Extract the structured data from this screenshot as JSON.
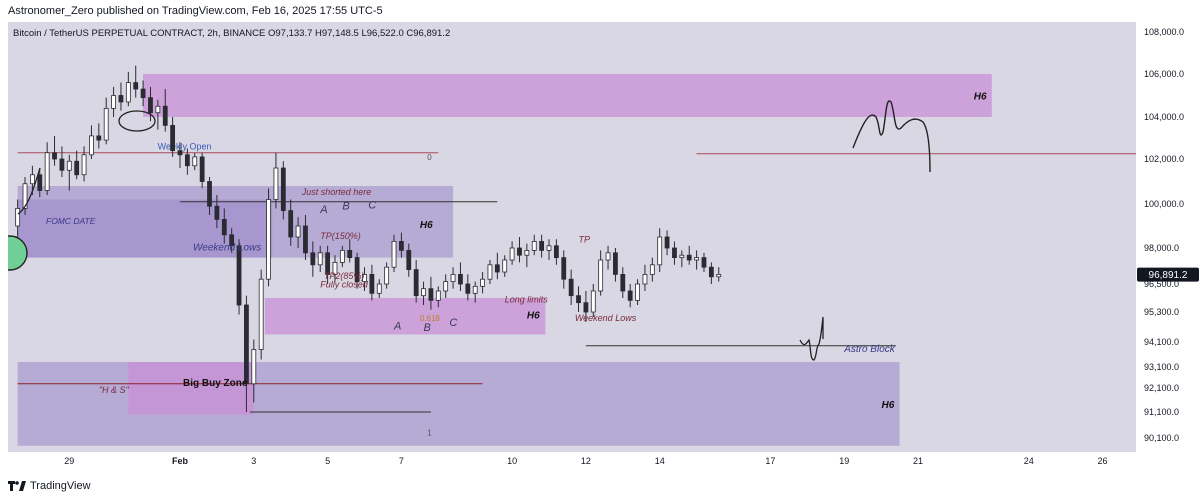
{
  "publication": "Astronomer_Zero published on TradingView.com, Feb 16, 2025 17:55 UTC-5",
  "watermark": "TradingView",
  "colors": {
    "background": "#d8d7e3",
    "candle": "#2b2b33",
    "zone": "#9a87c8",
    "zone_strong": "#c98fd6",
    "weekly_line": "#a94a5a",
    "price_label": "#131722"
  },
  "chart_data": {
    "type": "candlestick",
    "symbol_line": "Bitcoin / TetherUS PERPETUAL CONTRACT, 2h, BINANCE  O97,133.7  H97,148.5  L96,522.0  C96,891.2",
    "last_price": "96,891.2",
    "y_axis": {
      "ticks": [
        {
          "label": "108,000.0",
          "value": 108000
        },
        {
          "label": "106,000.0",
          "value": 106000
        },
        {
          "label": "104,000.0",
          "value": 104000
        },
        {
          "label": "102,000.0",
          "value": 102000
        },
        {
          "label": "100,000.0",
          "value": 100000
        },
        {
          "label": "98,000.0",
          "value": 98000
        },
        {
          "label": "96,500.0",
          "value": 96500
        },
        {
          "label": "95,300.0",
          "value": 95300
        },
        {
          "label": "94,100.0",
          "value": 94100
        },
        {
          "label": "93,100.0",
          "value": 93100
        },
        {
          "label": "92,100.0",
          "value": 92100
        },
        {
          "label": "91,100.0",
          "value": 91100
        },
        {
          "label": "90,100.0",
          "value": 90100
        }
      ]
    },
    "x_axis": {
      "ticks": [
        {
          "label": "29",
          "day": -3
        },
        {
          "label": "Feb",
          "day": 0
        },
        {
          "label": "3",
          "day": 2
        },
        {
          "label": "5",
          "day": 4
        },
        {
          "label": "7",
          "day": 6
        },
        {
          "label": "10",
          "day": 9
        },
        {
          "label": "12",
          "day": 11
        },
        {
          "label": "14",
          "day": 13
        },
        {
          "label": "17",
          "day": 16
        },
        {
          "label": "19",
          "day": 18
        },
        {
          "label": "21",
          "day": 20
        },
        {
          "label": "24",
          "day": 23
        },
        {
          "label": "26",
          "day": 25
        }
      ]
    },
    "zones": [
      {
        "label": "H6",
        "d0": -1,
        "d1": 22,
        "p0": 104000,
        "p1": 106000,
        "style": "strong"
      },
      {
        "label": "FOMC DATE",
        "d0": -4.4,
        "d1": 2.5,
        "p0": 97600,
        "p1": 100200,
        "style": "normal"
      },
      {
        "label": "Weekend Lows",
        "d0": -4.4,
        "d1": 7.4,
        "p0": 97600,
        "p1": 100800,
        "style": "normal"
      },
      {
        "label": "",
        "d0": 2.3,
        "d1": 9.9,
        "p0": 94400,
        "p1": 95900,
        "style": "strong"
      },
      {
        "label": "H6",
        "d0": -4.4,
        "d1": 19.5,
        "p0": 89800,
        "p1": 93300,
        "style": "normal"
      },
      {
        "label": "Big Buy Zone",
        "d0": -1.4,
        "d1": 2,
        "p0": 91000,
        "p1": 93300,
        "style": "strong"
      }
    ],
    "levels": [
      {
        "label": "Weekly Open",
        "price": 102300,
        "d0": -4.4,
        "d1": 7
      },
      {
        "label": "",
        "price": 102250,
        "d0": 14,
        "d1": 27.5
      },
      {
        "label": "",
        "price": 92300,
        "d0": -4.4,
        "d1": 8.2
      },
      {
        "label": "",
        "price": 100100,
        "d0": 0,
        "d1": 8.6
      },
      {
        "label": "",
        "price": 93950,
        "d0": 11,
        "d1": 19.4
      },
      {
        "label": "",
        "price": 91100,
        "d0": 1.9,
        "d1": 6.8
      }
    ],
    "annotations": [
      {
        "text": "Just shorted here",
        "day": 3.3,
        "price": 100400
      },
      {
        "text": "H6",
        "day": 6.5,
        "price": 98900
      },
      {
        "text": "TP(150%)",
        "day": 3.8,
        "price": 98400
      },
      {
        "text": "TP2(85%)",
        "day": 3.9,
        "price": 96700
      },
      {
        "text": "Fully closed",
        "day": 3.8,
        "price": 96350
      },
      {
        "text": "TP",
        "day": 10.8,
        "price": 98250
      },
      {
        "text": "Long limits",
        "day": 8.8,
        "price": 95700
      },
      {
        "text": "H6",
        "day": 9.4,
        "price": 95050
      },
      {
        "text": "Weekend Lows",
        "day": 10.7,
        "price": 94950
      },
      {
        "text": "Astro Block",
        "day": 18.0,
        "price": 93700
      },
      {
        "text": "\"H & S\"",
        "day": -2.2,
        "price": 91900
      },
      {
        "text": "A",
        "day": 3.8,
        "price": 99600
      },
      {
        "text": "B",
        "day": 4.4,
        "price": 99750
      },
      {
        "text": "C",
        "day": 5.1,
        "price": 99800
      },
      {
        "text": "A",
        "day": 5.8,
        "price": 94600
      },
      {
        "text": "B",
        "day": 6.6,
        "price": 94550
      },
      {
        "text": "C",
        "day": 7.3,
        "price": 94750
      },
      {
        "text": "0",
        "day": 6.7,
        "price": 101950
      },
      {
        "text": "1",
        "day": 6.7,
        "price": 90200
      },
      {
        "text": "0.618",
        "day": 6.5,
        "price": 94950
      }
    ],
    "candles": [
      [
        -4.4,
        99000,
        100200,
        98200,
        99800
      ],
      [
        -4.2,
        99800,
        101200,
        99500,
        100900
      ],
      [
        -4.0,
        100900,
        101700,
        100400,
        101300
      ],
      [
        -3.8,
        101300,
        101600,
        100300,
        100600
      ],
      [
        -3.6,
        100600,
        102800,
        100400,
        102300
      ],
      [
        -3.4,
        102300,
        103100,
        101700,
        102000
      ],
      [
        -3.2,
        102000,
        102600,
        101200,
        101500
      ],
      [
        -3.0,
        101500,
        102200,
        100600,
        101900
      ],
      [
        -2.8,
        101900,
        102400,
        101100,
        101300
      ],
      [
        -2.6,
        101300,
        102600,
        101000,
        102200
      ],
      [
        -2.4,
        102200,
        103600,
        102000,
        103100
      ],
      [
        -2.2,
        103100,
        103700,
        102500,
        102900
      ],
      [
        -2.0,
        102900,
        104900,
        102700,
        104400
      ],
      [
        -1.8,
        104400,
        105400,
        104000,
        105000
      ],
      [
        -1.6,
        105000,
        105600,
        104300,
        104700
      ],
      [
        -1.4,
        104700,
        106100,
        104500,
        105600
      ],
      [
        -1.2,
        105600,
        106400,
        104900,
        105300
      ],
      [
        -1.0,
        105300,
        105700,
        104500,
        104900
      ],
      [
        -0.8,
        104900,
        105400,
        103800,
        104200
      ],
      [
        -0.6,
        104200,
        104800,
        103400,
        104500
      ],
      [
        -0.4,
        104500,
        105300,
        103300,
        103600
      ],
      [
        -0.2,
        103600,
        104000,
        102100,
        102400
      ],
      [
        0.0,
        102400,
        102800,
        101600,
        102200
      ],
      [
        0.2,
        102200,
        102500,
        101300,
        101700
      ],
      [
        0.4,
        101700,
        102300,
        101500,
        102100
      ],
      [
        0.6,
        102100,
        102300,
        100700,
        101000
      ],
      [
        0.8,
        101000,
        101200,
        99500,
        99900
      ],
      [
        1.0,
        99900,
        100400,
        98900,
        99300
      ],
      [
        1.2,
        99300,
        99800,
        98200,
        98600
      ],
      [
        1.4,
        98600,
        98900,
        97800,
        98100
      ],
      [
        1.6,
        98100,
        98400,
        95200,
        95600
      ],
      [
        1.8,
        95600,
        96000,
        91100,
        92300
      ],
      [
        2.0,
        92300,
        94200,
        91500,
        93800
      ],
      [
        2.2,
        93800,
        97100,
        93400,
        96700
      ],
      [
        2.4,
        96700,
        100700,
        96400,
        100200
      ],
      [
        2.6,
        100200,
        102300,
        99800,
        101600
      ],
      [
        2.8,
        101600,
        101900,
        99300,
        99700
      ],
      [
        3.0,
        99700,
        100200,
        98100,
        98500
      ],
      [
        3.2,
        98500,
        99400,
        98000,
        99000
      ],
      [
        3.4,
        99000,
        99500,
        97500,
        97800
      ],
      [
        3.6,
        97800,
        98300,
        96800,
        97300
      ],
      [
        3.8,
        97300,
        98100,
        97000,
        97800
      ],
      [
        4.0,
        97800,
        98100,
        96500,
        96900
      ],
      [
        4.2,
        96900,
        97700,
        96600,
        97400
      ],
      [
        4.4,
        97400,
        98100,
        97200,
        97900
      ],
      [
        4.6,
        97900,
        98400,
        97400,
        97600
      ],
      [
        4.8,
        97600,
        97800,
        96300,
        96600
      ],
      [
        5.0,
        96600,
        97200,
        96200,
        96900
      ],
      [
        5.2,
        96900,
        97300,
        95800,
        96100
      ],
      [
        5.4,
        96100,
        96700,
        95900,
        96500
      ],
      [
        5.6,
        96500,
        97400,
        96300,
        97200
      ],
      [
        5.8,
        97200,
        98600,
        97000,
        98300
      ],
      [
        6.0,
        98300,
        98700,
        97600,
        97900
      ],
      [
        6.2,
        97900,
        98200,
        96800,
        97100
      ],
      [
        6.4,
        97100,
        97500,
        95700,
        96000
      ],
      [
        6.6,
        96000,
        96600,
        95600,
        96300
      ],
      [
        6.8,
        96300,
        96800,
        95400,
        95800
      ],
      [
        7.0,
        95800,
        96400,
        95500,
        96200
      ],
      [
        7.2,
        96200,
        96900,
        95900,
        96600
      ],
      [
        7.4,
        96600,
        97200,
        96300,
        96900
      ],
      [
        7.6,
        96900,
        97400,
        96200,
        96500
      ],
      [
        7.8,
        96500,
        96900,
        95800,
        96100
      ],
      [
        8.0,
        96100,
        96600,
        95700,
        96400
      ],
      [
        8.2,
        96400,
        97000,
        96100,
        96700
      ],
      [
        8.4,
        96700,
        97500,
        96500,
        97300
      ],
      [
        8.6,
        97300,
        97800,
        96700,
        97000
      ],
      [
        8.8,
        97000,
        97700,
        96800,
        97500
      ],
      [
        9.0,
        97500,
        98300,
        97300,
        98000
      ],
      [
        9.2,
        98000,
        98500,
        97400,
        97700
      ],
      [
        9.4,
        97700,
        98200,
        97200,
        97900
      ],
      [
        9.6,
        97900,
        98600,
        97700,
        98300
      ],
      [
        9.8,
        98300,
        98600,
        97600,
        97900
      ],
      [
        10.0,
        97900,
        98400,
        97500,
        98100
      ],
      [
        10.2,
        98100,
        98400,
        97300,
        97600
      ],
      [
        10.4,
        97600,
        97900,
        96300,
        96700
      ],
      [
        10.6,
        96700,
        97100,
        95600,
        96000
      ],
      [
        10.8,
        96000,
        96400,
        95300,
        95700
      ],
      [
        11.0,
        95700,
        96200,
        94900,
        95300
      ],
      [
        11.2,
        95300,
        96500,
        95100,
        96200
      ],
      [
        11.4,
        96200,
        97900,
        96000,
        97500
      ],
      [
        11.6,
        97500,
        98100,
        97100,
        97800
      ],
      [
        11.8,
        97800,
        98000,
        96600,
        96900
      ],
      [
        12.0,
        96900,
        97200,
        95900,
        96200
      ],
      [
        12.2,
        96200,
        96500,
        95500,
        95800
      ],
      [
        12.4,
        95800,
        96700,
        95600,
        96500
      ],
      [
        12.6,
        96500,
        97300,
        96200,
        96900
      ],
      [
        12.8,
        96900,
        97600,
        96600,
        97300
      ],
      [
        13.0,
        97300,
        98900,
        97000,
        98500
      ],
      [
        13.2,
        98500,
        98800,
        97700,
        98000
      ],
      [
        13.4,
        98000,
        98300,
        97300,
        97600
      ],
      [
        13.6,
        97600,
        97900,
        97200,
        97700
      ],
      [
        13.8,
        97700,
        98100,
        97300,
        97500
      ],
      [
        14.0,
        97500,
        97900,
        97100,
        97600
      ],
      [
        14.2,
        97600,
        97800,
        97000,
        97200
      ],
      [
        14.4,
        97200,
        97400,
        96500,
        96800
      ],
      [
        14.6,
        96800,
        97200,
        96600,
        96900
      ]
    ]
  }
}
